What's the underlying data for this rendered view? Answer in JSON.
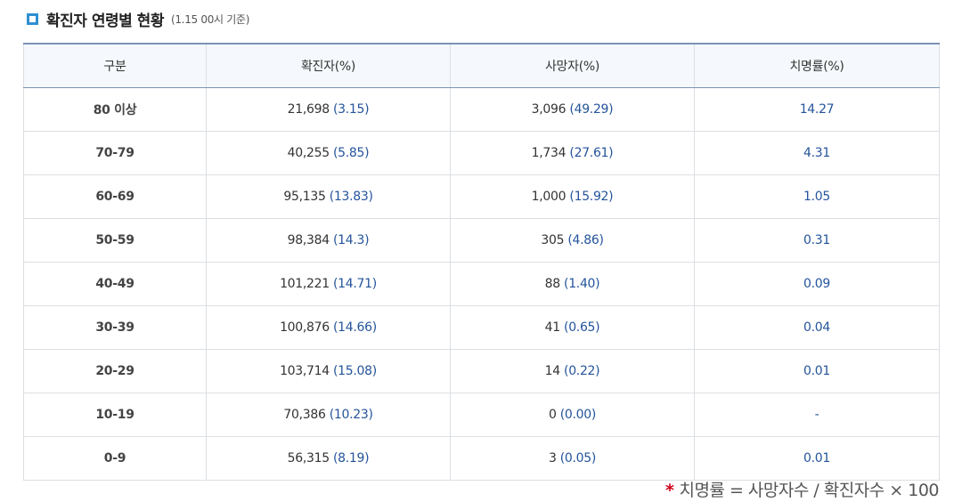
{
  "header": {
    "title": "확진자 연령별 현황",
    "subtitle": "(1.15 00시 기준)"
  },
  "table": {
    "columns": [
      "구분",
      "확진자(%)",
      "사망자(%)",
      "치명률(%)"
    ],
    "rows": [
      {
        "group": "80 이상",
        "cases": "21,698",
        "cases_pct": "(3.15)",
        "deaths": "3,096",
        "deaths_pct": "(49.29)",
        "rate": "14.27"
      },
      {
        "group": "70-79",
        "cases": "40,255",
        "cases_pct": "(5.85)",
        "deaths": "1,734",
        "deaths_pct": "(27.61)",
        "rate": "4.31"
      },
      {
        "group": "60-69",
        "cases": "95,135",
        "cases_pct": "(13.83)",
        "deaths": "1,000",
        "deaths_pct": "(15.92)",
        "rate": "1.05"
      },
      {
        "group": "50-59",
        "cases": "98,384",
        "cases_pct": "(14.3)",
        "deaths": "305",
        "deaths_pct": "(4.86)",
        "rate": "0.31"
      },
      {
        "group": "40-49",
        "cases": "101,221",
        "cases_pct": "(14.71)",
        "deaths": "88",
        "deaths_pct": "(1.40)",
        "rate": "0.09"
      },
      {
        "group": "30-39",
        "cases": "100,876",
        "cases_pct": "(14.66)",
        "deaths": "41",
        "deaths_pct": "(0.65)",
        "rate": "0.04"
      },
      {
        "group": "20-29",
        "cases": "103,714",
        "cases_pct": "(15.08)",
        "deaths": "14",
        "deaths_pct": "(0.22)",
        "rate": "0.01"
      },
      {
        "group": "10-19",
        "cases": "70,386",
        "cases_pct": "(10.23)",
        "deaths": "0",
        "deaths_pct": "(0.00)",
        "rate": "-"
      },
      {
        "group": "0-9",
        "cases": "56,315",
        "cases_pct": "(8.19)",
        "deaths": "3",
        "deaths_pct": "(0.05)",
        "rate": "0.01"
      }
    ]
  },
  "footnote": {
    "star": "*",
    "text": "치명률 = 사망자수 / 확진자수 × 100"
  },
  "colors": {
    "accent": "#2f8fd1",
    "value_blue": "#24549b",
    "star_red": "#d0021b"
  }
}
